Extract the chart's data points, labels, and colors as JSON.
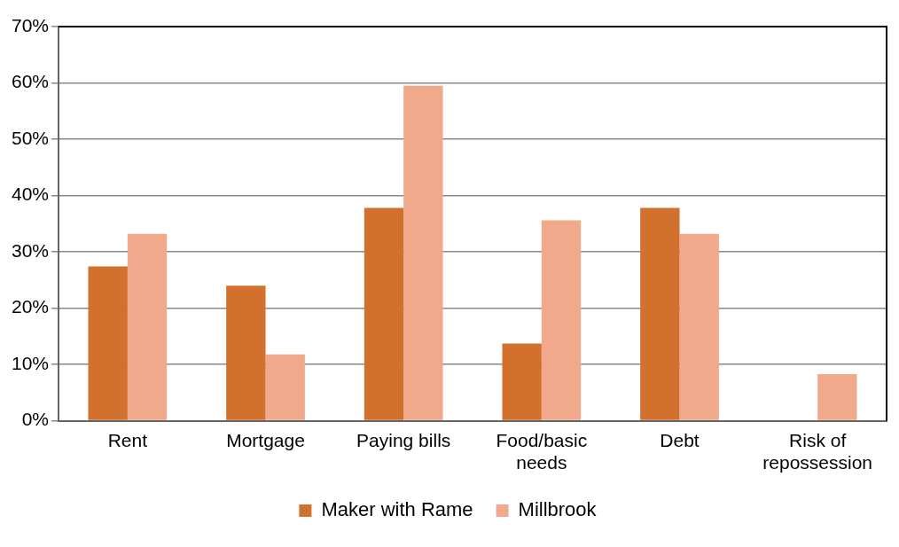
{
  "chart_data": {
    "type": "bar",
    "categories": [
      "Rent",
      "Mortgage",
      "Paying bills",
      "Food/basic needs",
      "Debt",
      "Risk of repossession"
    ],
    "series": [
      {
        "name": "Maker with Rame",
        "color": "#d2702d",
        "values": [
          27.4,
          24.0,
          37.8,
          13.7,
          37.8,
          0
        ]
      },
      {
        "name": "Millbrook",
        "color": "#f0a98a",
        "values": [
          33.2,
          11.8,
          59.5,
          35.6,
          33.2,
          8.3
        ]
      }
    ],
    "ylim": [
      0,
      70
    ],
    "yticks": [
      {
        "value": 0,
        "label": "0%"
      },
      {
        "value": 10,
        "label": "10%"
      },
      {
        "value": 20,
        "label": "20%"
      },
      {
        "value": 30,
        "label": "30%"
      },
      {
        "value": 40,
        "label": "40%"
      },
      {
        "value": 50,
        "label": "50%"
      },
      {
        "value": 60,
        "label": "60%"
      },
      {
        "value": 70,
        "label": "70%"
      }
    ],
    "grid": "y",
    "legend": "bottom"
  }
}
